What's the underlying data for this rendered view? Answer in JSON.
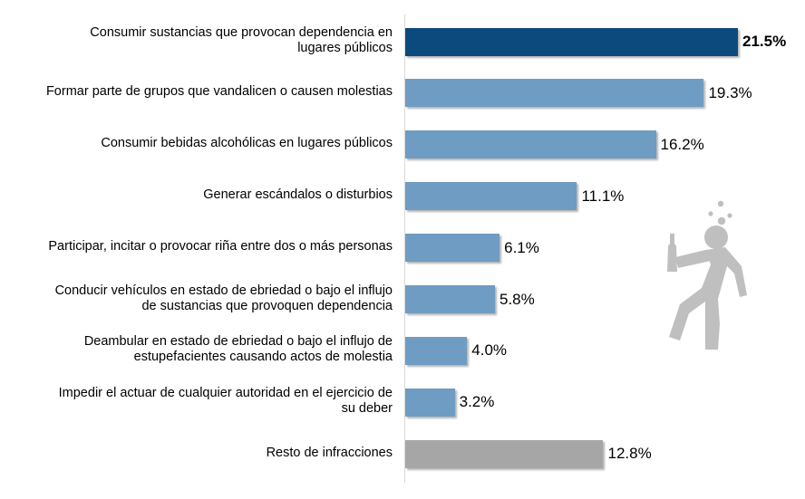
{
  "chart_data": {
    "type": "bar",
    "orientation": "horizontal",
    "title": "",
    "xlabel": "",
    "ylabel": "",
    "xlim": [
      0,
      21.5
    ],
    "grid": false,
    "value_format": "0.0%",
    "categories": [
      "Consumir sustancias que provocan dependencia en lugares públicos",
      "Formar parte de grupos que vandalicen o causen molestias",
      "Consumir bebidas alcohólicas en lugares públicos",
      "Generar escándalos o disturbios",
      "Participar, incitar o provocar riña entre dos o más personas",
      "Conducir vehículos en estado de ebriedad o bajo el influjo de sustancias que provoquen dependencia",
      "Deambular en estado de ebriedad o bajo el influjo de estupefacientes causando actos de molestia",
      "Impedir el actuar de cualquier autoridad en el ejercicio de su deber",
      "Resto de infracciones"
    ],
    "label_lines": [
      [
        "Consumir sustancias que provocan dependencia en",
        "lugares públicos"
      ],
      [
        "Formar parte de grupos que vandalicen o causen molestias"
      ],
      [
        "Consumir bebidas alcohólicas en lugares públicos"
      ],
      [
        "Generar escándalos o disturbios"
      ],
      [
        "Participar, incitar o provocar riña entre dos o más personas"
      ],
      [
        "Conducir vehículos en estado de ebriedad o bajo el influjo",
        "de sustancias que provoquen dependencia"
      ],
      [
        "Deambular en estado de ebriedad o bajo el influjo de",
        "estupefacientes causando actos de molestia"
      ],
      [
        "Impedir el actuar de cualquier autoridad en el ejercicio de",
        "su deber"
      ],
      [
        "Resto de infracciones"
      ]
    ],
    "values": [
      21.5,
      19.3,
      16.2,
      11.1,
      6.1,
      5.8,
      4.0,
      3.2,
      12.8
    ],
    "data_labels": [
      "21.5%",
      "19.3%",
      "16.2%",
      "11.1%",
      "6.1%",
      "5.8%",
      "4.0%",
      "3.2%",
      "12.8%"
    ],
    "highlight_index": 0,
    "colors": {
      "highlight": "#0c4a7e",
      "default": "#6f9cc3",
      "other": "#a6a6a6",
      "axis": "#d9d9d9",
      "illustration": "#bfbfbf"
    },
    "bar_colors": [
      "highlight",
      "default",
      "default",
      "default",
      "default",
      "default",
      "default",
      "default",
      "other"
    ]
  },
  "illustration": {
    "icon": "drunk-person-with-bottle-icon"
  }
}
